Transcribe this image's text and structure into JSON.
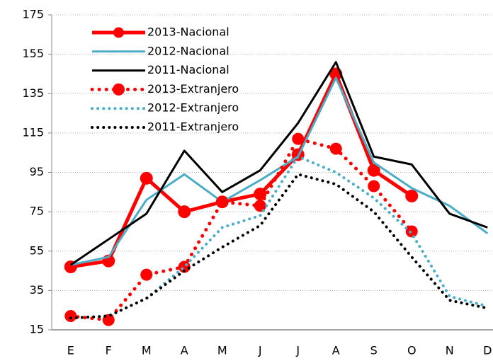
{
  "chart_data": {
    "type": "line",
    "categories": [
      "E",
      "F",
      "M",
      "A",
      "M",
      "J",
      "J",
      "A",
      "S",
      "O",
      "N",
      "D"
    ],
    "series": [
      {
        "name": "2013-Nacional",
        "color": "#ff0000",
        "style": "solid",
        "marker": true,
        "width": 5,
        "values": [
          47,
          50,
          92,
          75,
          80,
          84,
          104,
          145,
          96,
          83,
          null,
          null
        ]
      },
      {
        "name": "2012-Nacional",
        "color": "#4bacc6",
        "style": "solid",
        "marker": false,
        "width": 3,
        "values": [
          48,
          52,
          81,
          94,
          80,
          91,
          103,
          143,
          100,
          87,
          78,
          64
        ]
      },
      {
        "name": "2011-Nacional",
        "color": "#000000",
        "style": "solid",
        "marker": false,
        "width": 3,
        "values": [
          48,
          61,
          74,
          106,
          85,
          96,
          120,
          151,
          103,
          99,
          74,
          67
        ]
      },
      {
        "name": "2013-Extranjero",
        "color": "#ff0000",
        "style": "dotted",
        "marker": true,
        "width": 5,
        "values": [
          22,
          20,
          43,
          47,
          80,
          78,
          112,
          107,
          88,
          65,
          null,
          null
        ]
      },
      {
        "name": "2012-Extranjero",
        "color": "#4bacc6",
        "style": "dotted",
        "marker": false,
        "width": 4,
        "values": [
          21,
          22,
          31,
          47,
          67,
          73,
          103,
          95,
          82,
          64,
          32,
          27
        ]
      },
      {
        "name": "2011-Extranjero",
        "color": "#000000",
        "style": "dotted",
        "marker": false,
        "width": 4,
        "values": [
          21,
          22,
          31,
          45,
          57,
          68,
          94,
          89,
          75,
          52,
          30,
          26
        ]
      }
    ],
    "ylim": [
      15,
      175
    ],
    "yticks": [
      15,
      35,
      55,
      75,
      95,
      115,
      135,
      155,
      175
    ],
    "grid": true,
    "legend": "upper left"
  }
}
